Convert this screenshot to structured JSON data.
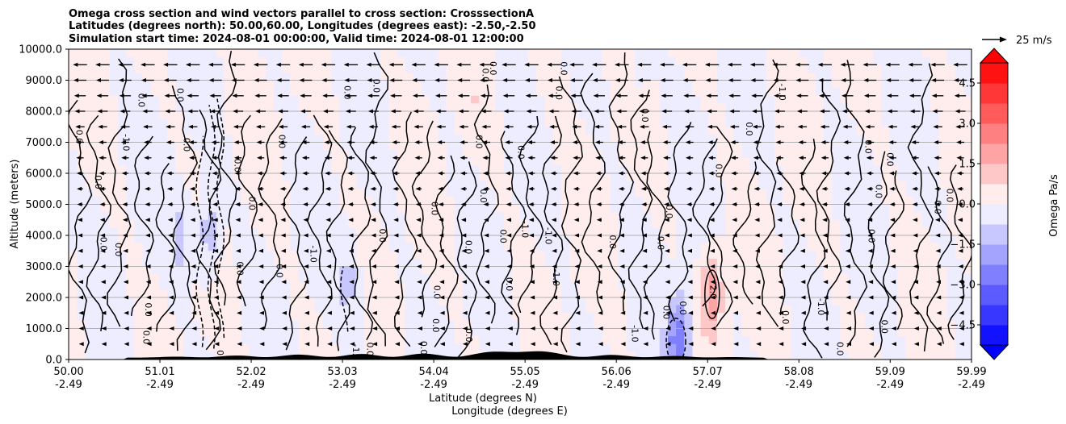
{
  "chart_data": {
    "type": "heatmap",
    "title_lines": [
      "Omega cross section and wind vectors parallel to cross section: CrosssectionA",
      "Latitudes (degrees north): 50.00,60.00, Longitudes (degrees east): -2.50,-2.50",
      "Simulation start time: 2024-08-01 00:00:00, Valid time: 2024-08-01 12:00:00"
    ],
    "ylabel": "Altitude (meters)",
    "xlabel_lat": "Latitude (degrees N)",
    "xlabel_lon": "Longitude (degrees E)",
    "xlim": [
      50.0,
      59.99
    ],
    "ylim": [
      0,
      10000
    ],
    "yticks": [
      "0.0",
      "1000.0",
      "2000.0",
      "3000.0",
      "4000.0",
      "5000.0",
      "6000.0",
      "7000.0",
      "8000.0",
      "9000.0",
      "10000.0"
    ],
    "ytick_values": [
      0,
      1000,
      2000,
      3000,
      4000,
      5000,
      6000,
      7000,
      8000,
      9000,
      10000
    ],
    "xticks_lat": [
      "50.00",
      "51.01",
      "52.02",
      "53.03",
      "54.04",
      "55.05",
      "56.06",
      "57.07",
      "58.08",
      "59.09",
      "59.99"
    ],
    "xticks_lon": [
      "-2.49",
      "-2.49",
      "-2.49",
      "-2.49",
      "-2.49",
      "-2.49",
      "-2.49",
      "-2.49",
      "-2.49",
      "-2.49",
      "-2.49"
    ],
    "xtick_values": [
      50.0,
      51.01,
      52.02,
      53.03,
      54.04,
      55.05,
      56.06,
      57.07,
      58.08,
      59.09,
      59.99
    ],
    "grid": "horizontal",
    "colorbar": {
      "label": "Omega Pa/s",
      "range": [
        -5.25,
        5.25
      ],
      "ticks": [
        "4.5",
        "3.0",
        "1.5",
        "0.0",
        "−1.5",
        "−3.0",
        "−4.5"
      ],
      "tick_values": [
        4.5,
        3.0,
        1.5,
        0.0,
        -1.5,
        -3.0,
        -4.5
      ],
      "extend": "both",
      "negative_color": "#0000ff",
      "positive_color": "#ff0000"
    },
    "quiver_key": {
      "label": "25 m/s"
    },
    "contour_labels": [
      "0.0",
      "-1.0",
      "1.0",
      "2.0"
    ],
    "omega_features": [
      {
        "lat": 51.55,
        "alt": 4000,
        "omega": -1.5
      },
      {
        "lat": 51.25,
        "alt": 4000,
        "omega": -1.0
      },
      {
        "lat": 53.1,
        "alt": 2500,
        "omega": -1.0
      },
      {
        "lat": 56.75,
        "alt": 600,
        "omega": -3.0
      },
      {
        "lat": 57.12,
        "alt": 2100,
        "omega": 2.0
      },
      {
        "lat": 55.35,
        "alt": 9500,
        "omega": 0.6
      },
      {
        "lat": 54.5,
        "alt": 8000,
        "omega": 0.4
      },
      {
        "lat": 56.3,
        "alt": 9300,
        "omega": -0.5
      }
    ],
    "wind": {
      "direction": "southward",
      "speed_profile_ms": [
        {
          "alt": 9500,
          "speed": 14
        },
        {
          "alt": 7000,
          "speed": 8
        },
        {
          "alt": 4500,
          "speed": 5
        },
        {
          "alt": 2000,
          "speed": 3
        },
        {
          "alt": 1000,
          "speed": 2
        }
      ]
    }
  }
}
